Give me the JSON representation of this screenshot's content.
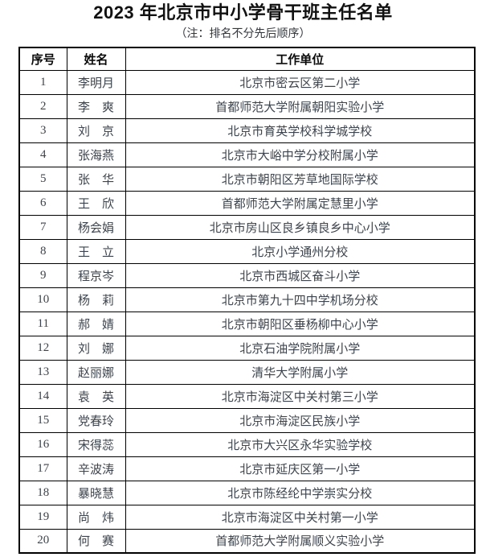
{
  "doc": {
    "title": "2023 年北京市中小学骨干班主任名单",
    "subtitle": "（注：排名不分先后顺序）"
  },
  "table": {
    "headers": [
      "序号",
      "姓名",
      "工作单位"
    ],
    "rows": [
      {
        "no": "1",
        "name": "李明月",
        "unit": "北京市密云区第二小学"
      },
      {
        "no": "2",
        "name": "李　爽",
        "unit": "首都师范大学附属朝阳实验小学"
      },
      {
        "no": "3",
        "name": "刘　京",
        "unit": "北京市育英学校科学城学校"
      },
      {
        "no": "4",
        "name": "张海燕",
        "unit": "北京市大峪中学分校附属小学"
      },
      {
        "no": "5",
        "name": "张　华",
        "unit": "北京市朝阳区芳草地国际学校"
      },
      {
        "no": "6",
        "name": "王　欣",
        "unit": "首都师范大学附属定慧里小学"
      },
      {
        "no": "7",
        "name": "杨会娟",
        "unit": "北京市房山区良乡镇良乡中心小学"
      },
      {
        "no": "8",
        "name": "王　立",
        "unit": "北京小学通州分校"
      },
      {
        "no": "9",
        "name": "程京岑",
        "unit": "北京市西城区奋斗小学"
      },
      {
        "no": "10",
        "name": "杨　莉",
        "unit": "北京市第九十四中学机场分校"
      },
      {
        "no": "11",
        "name": "郝　婧",
        "unit": "北京市朝阳区垂杨柳中心小学"
      },
      {
        "no": "12",
        "name": "刘　娜",
        "unit": "北京石油学院附属小学"
      },
      {
        "no": "13",
        "name": "赵丽娜",
        "unit": "清华大学附属小学"
      },
      {
        "no": "14",
        "name": "袁　英",
        "unit": "北京市海淀区中关村第三小学"
      },
      {
        "no": "15",
        "name": "党春玲",
        "unit": "北京市海淀区民族小学"
      },
      {
        "no": "16",
        "name": "宋得蕊",
        "unit": "北京市大兴区永华实验学校"
      },
      {
        "no": "17",
        "name": "辛波涛",
        "unit": "北京市延庆区第一小学"
      },
      {
        "no": "18",
        "name": "暴晓慧",
        "unit": "北京市陈经纶中学崇实分校"
      },
      {
        "no": "19",
        "name": "尚　炜",
        "unit": "北京市海淀区中关村第一小学"
      },
      {
        "no": "20",
        "name": "何　赛",
        "unit": "首都师范大学附属顺义实验小学"
      }
    ]
  },
  "colors": {
    "border": "#000000",
    "title_text": "#111111",
    "body_text": "#3d444d",
    "background": "#ffffff"
  }
}
